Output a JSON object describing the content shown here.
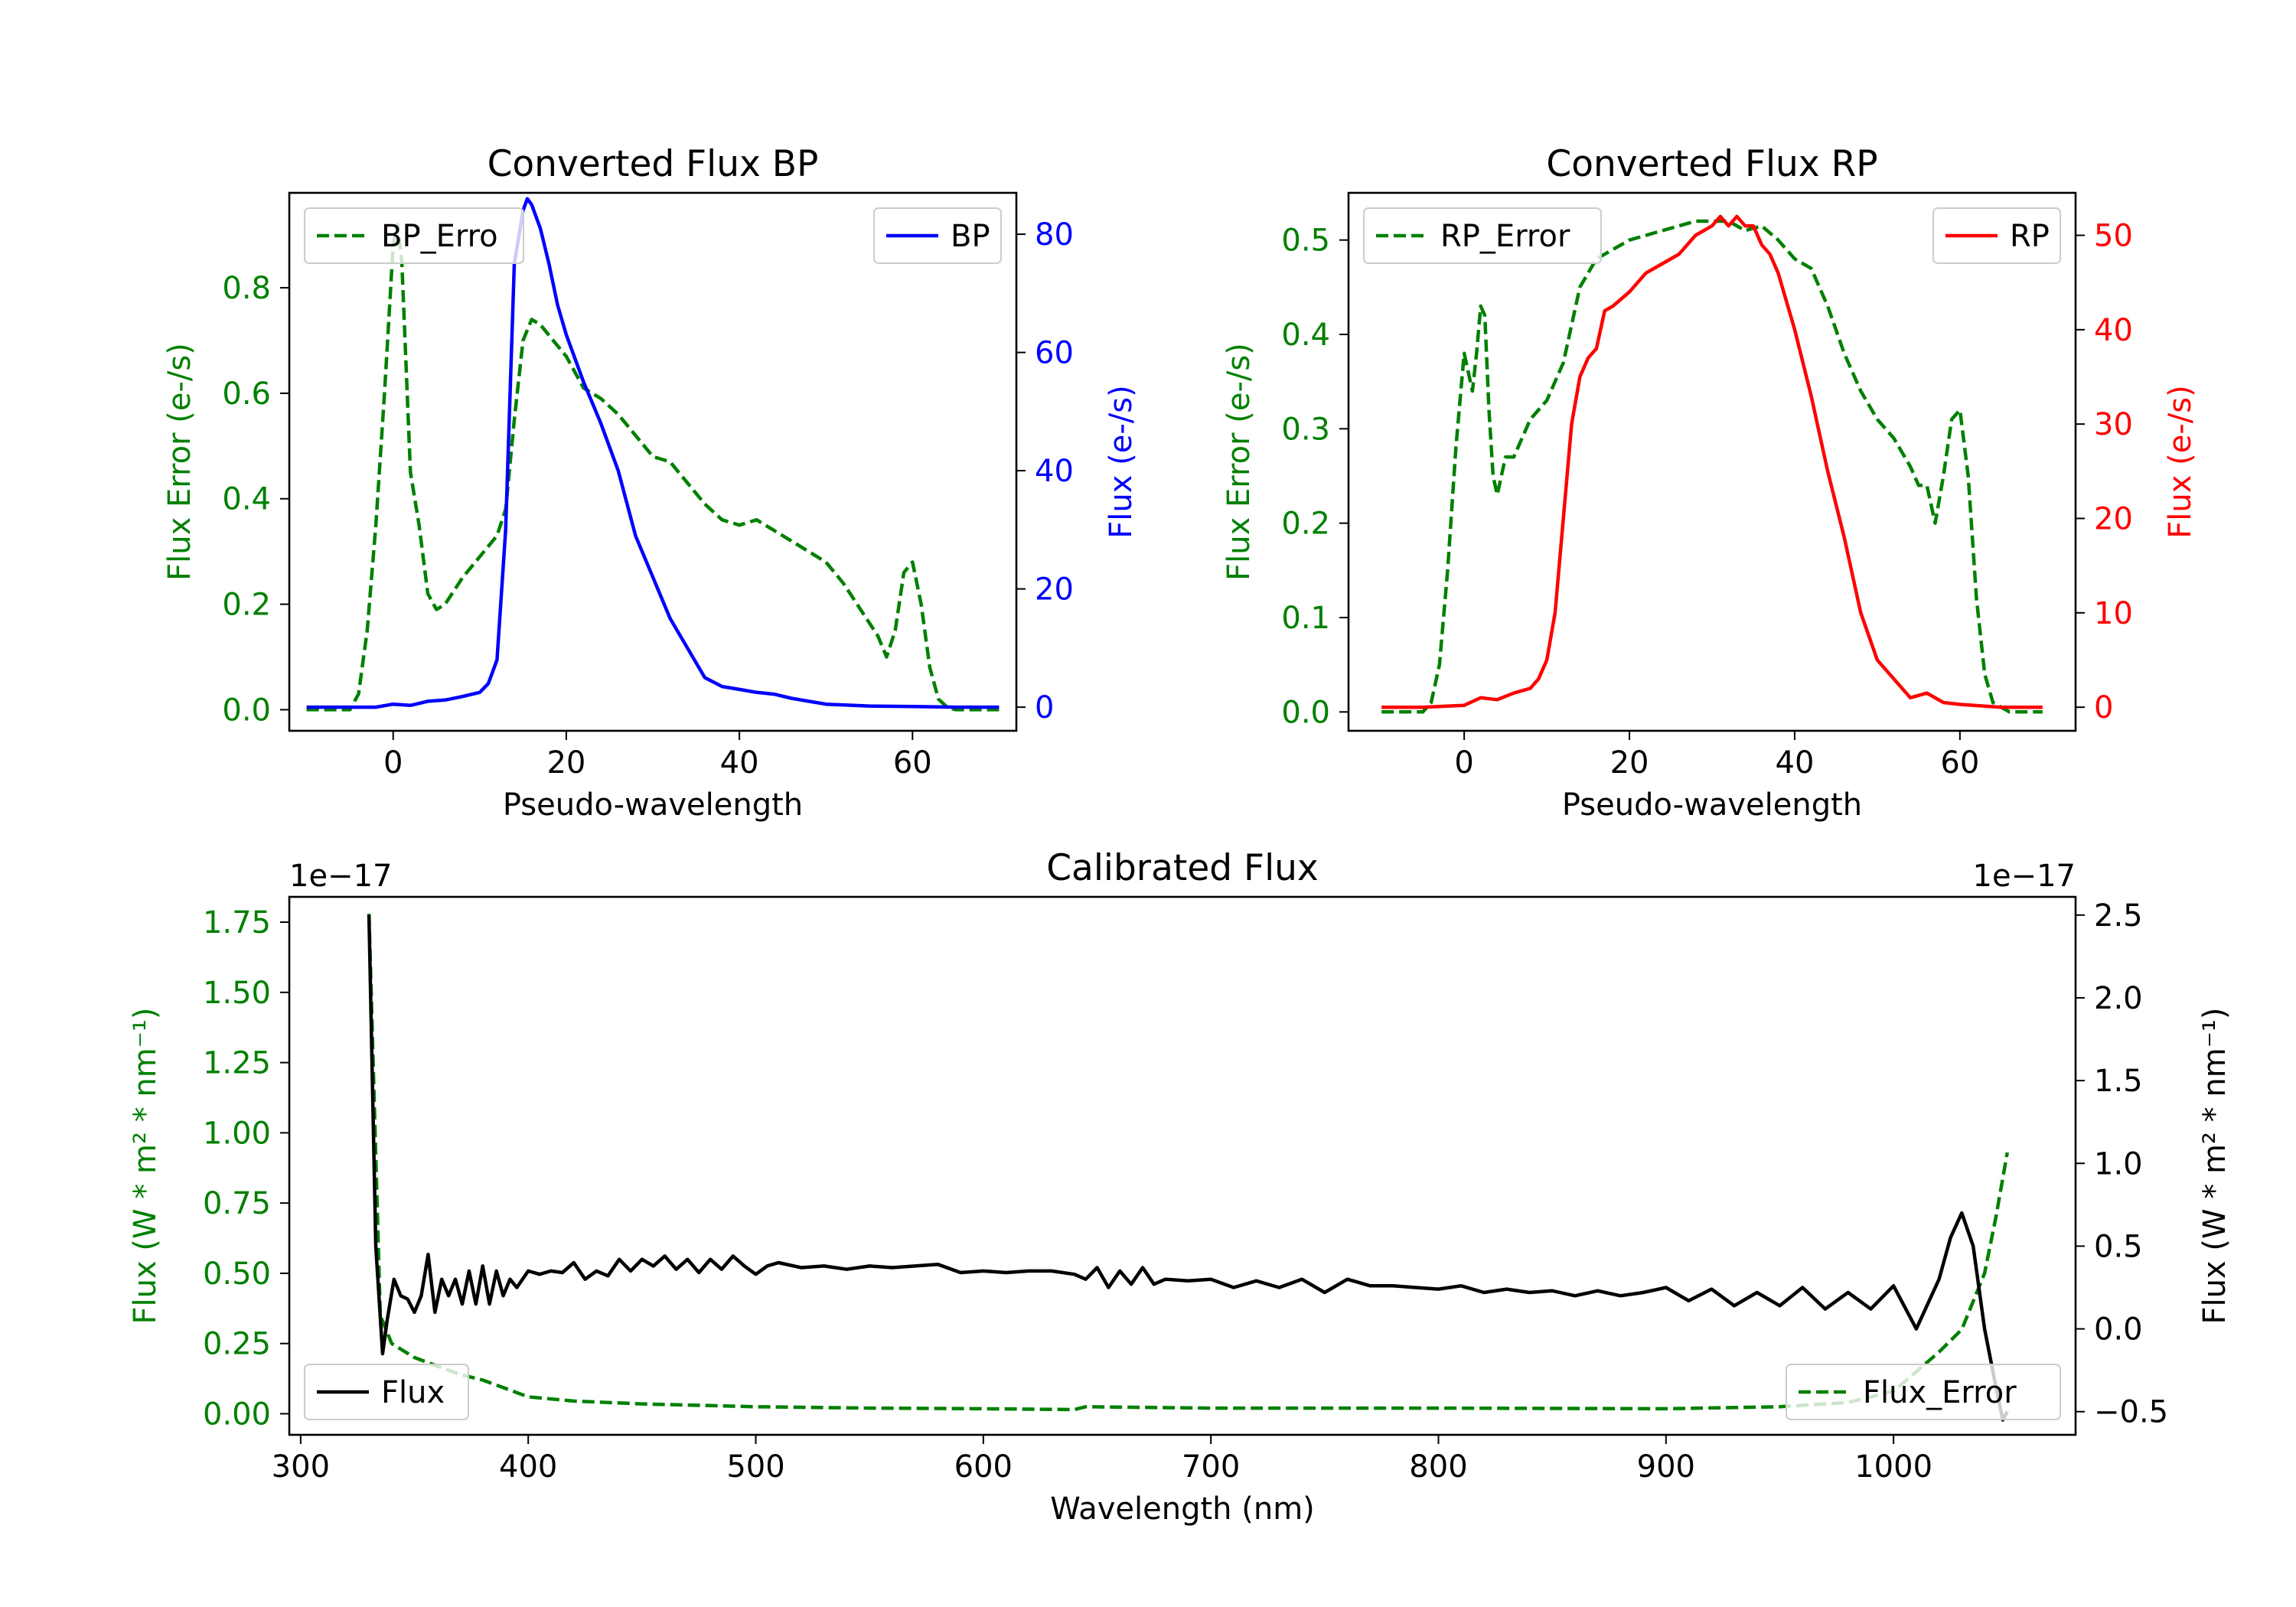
{
  "colors": {
    "green": "#008000",
    "blue": "#0000ff",
    "red": "#ff0000",
    "black": "#000000"
  },
  "chart_data": [
    {
      "id": "bp",
      "type": "line",
      "title": "Converted Flux BP",
      "xlabel": "Pseudo-wavelength",
      "xlim": [
        -12,
        72
      ],
      "xticks": [
        0,
        20,
        40,
        60
      ],
      "left_axis": {
        "label": "Flux Error (e-/s)",
        "color": "#008000",
        "lim": [
          -0.04,
          0.98
        ],
        "ticks": [
          0.0,
          0.2,
          0.4,
          0.6,
          0.8
        ],
        "tick_labels": [
          "0.0",
          "0.2",
          "0.4",
          "0.6",
          "0.8"
        ]
      },
      "right_axis": {
        "label": "Flux (e-/s)",
        "color": "#0000ff",
        "lim": [
          -4,
          87
        ],
        "ticks": [
          0,
          20,
          40,
          60,
          80
        ],
        "tick_labels": [
          "0",
          "20",
          "40",
          "60",
          "80"
        ]
      },
      "series": [
        {
          "name": "BP_Error",
          "axis": "left",
          "style": "dashed",
          "color": "#008000",
          "legend_label": "BP_Erro",
          "x": [
            -10,
            -5,
            -4,
            -3,
            -2,
            -1,
            0,
            0.5,
            1,
            2,
            3,
            4,
            5,
            6,
            8,
            10,
            12,
            13,
            14,
            15,
            16,
            17,
            18,
            20,
            22,
            24,
            26,
            28,
            30,
            32,
            34,
            36,
            38,
            40,
            42,
            44,
            46,
            48,
            50,
            52,
            54,
            56,
            57,
            58,
            59,
            60,
            61,
            62,
            63,
            64,
            65,
            66,
            68,
            70
          ],
          "y": [
            0,
            0,
            0.03,
            0.15,
            0.35,
            0.6,
            0.88,
            0.92,
            0.85,
            0.45,
            0.35,
            0.22,
            0.19,
            0.2,
            0.25,
            0.29,
            0.33,
            0.38,
            0.55,
            0.7,
            0.74,
            0.73,
            0.71,
            0.67,
            0.61,
            0.59,
            0.56,
            0.52,
            0.48,
            0.47,
            0.43,
            0.39,
            0.36,
            0.35,
            0.36,
            0.34,
            0.32,
            0.3,
            0.28,
            0.24,
            0.19,
            0.14,
            0.1,
            0.15,
            0.26,
            0.28,
            0.2,
            0.08,
            0.02,
            0.005,
            0,
            0,
            0,
            0
          ]
        },
        {
          "name": "BP",
          "axis": "right",
          "style": "solid",
          "color": "#0000ff",
          "legend_label": "BP",
          "x": [
            -10,
            -2,
            0,
            2,
            4,
            6,
            8,
            10,
            11,
            12,
            13,
            14,
            15,
            15.5,
            16,
            17,
            18,
            19,
            20,
            22,
            24,
            26,
            28,
            30,
            32,
            34,
            36,
            38,
            40,
            42,
            44,
            46,
            48,
            50,
            55,
            60,
            65,
            70
          ],
          "y": [
            0,
            0,
            0.5,
            0.3,
            1,
            1.2,
            1.8,
            2.5,
            4,
            8,
            30,
            75,
            84,
            86,
            85,
            81,
            75,
            68,
            63,
            55,
            48,
            40,
            29,
            22,
            15,
            10,
            5,
            3.5,
            3,
            2.5,
            2.2,
            1.5,
            1,
            0.5,
            0.2,
            0.1,
            0,
            0
          ]
        }
      ],
      "legends": [
        {
          "series": "BP_Error",
          "loc": "upper left"
        },
        {
          "series": "BP",
          "loc": "upper right"
        }
      ]
    },
    {
      "id": "rp",
      "type": "line",
      "title": "Converted Flux RP",
      "xlabel": "Pseudo-wavelength",
      "xlim": [
        -14,
        74
      ],
      "xticks": [
        0,
        20,
        40,
        60
      ],
      "left_axis": {
        "label": "Flux Error (e-/s)",
        "color": "#008000",
        "lim": [
          -0.02,
          0.55
        ],
        "ticks": [
          0.0,
          0.1,
          0.2,
          0.3,
          0.4,
          0.5
        ],
        "tick_labels": [
          "0.0",
          "0.1",
          "0.2",
          "0.3",
          "0.4",
          "0.5"
        ]
      },
      "right_axis": {
        "label": "Flux (e-/s)",
        "color": "#ff0000",
        "lim": [
          -2.5,
          54.5
        ],
        "ticks": [
          0,
          10,
          20,
          30,
          40,
          50
        ],
        "tick_labels": [
          "0",
          "10",
          "20",
          "30",
          "40",
          "50"
        ]
      },
      "series": [
        {
          "name": "RP_Error",
          "axis": "left",
          "style": "dashed",
          "color": "#008000",
          "legend_label": "RP_Error",
          "x": [
            -10,
            -5,
            -4,
            -3,
            -2,
            -1,
            0,
            0.5,
            1,
            1.5,
            2,
            2.5,
            3,
            3.5,
            4,
            5,
            6,
            8,
            10,
            12,
            14,
            16,
            18,
            20,
            22,
            24,
            26,
            28,
            30,
            32,
            34,
            36,
            38,
            40,
            42,
            44,
            46,
            48,
            50,
            52,
            54,
            55,
            56,
            57,
            58,
            59,
            60,
            61,
            62,
            63,
            64,
            66,
            68,
            70
          ],
          "y": [
            0,
            0,
            0.01,
            0.05,
            0.15,
            0.28,
            0.38,
            0.36,
            0.34,
            0.38,
            0.43,
            0.42,
            0.32,
            0.25,
            0.23,
            0.27,
            0.27,
            0.31,
            0.33,
            0.37,
            0.45,
            0.48,
            0.49,
            0.5,
            0.505,
            0.51,
            0.515,
            0.52,
            0.52,
            0.52,
            0.51,
            0.515,
            0.5,
            0.48,
            0.47,
            0.43,
            0.38,
            0.34,
            0.31,
            0.29,
            0.26,
            0.24,
            0.24,
            0.2,
            0.25,
            0.31,
            0.32,
            0.25,
            0.12,
            0.04,
            0.01,
            0,
            0,
            0
          ]
        },
        {
          "name": "RP",
          "axis": "right",
          "style": "solid",
          "color": "#ff0000",
          "legend_label": "RP",
          "x": [
            -10,
            -5,
            0,
            2,
            4,
            6,
            8,
            9,
            10,
            11,
            12,
            13,
            14,
            15,
            16,
            17,
            18,
            20,
            22,
            24,
            26,
            28,
            30,
            31,
            32,
            33,
            34,
            35,
            36,
            37,
            38,
            40,
            42,
            44,
            46,
            48,
            50,
            52,
            54,
            56,
            58,
            60,
            65,
            70
          ],
          "y": [
            0,
            0,
            0.2,
            1,
            0.8,
            1.5,
            2,
            3,
            5,
            10,
            20,
            30,
            35,
            37,
            38,
            42,
            42.5,
            44,
            46,
            47,
            48,
            50,
            51,
            52,
            51,
            52,
            51,
            51,
            49,
            48,
            46,
            40,
            33,
            25,
            18,
            10,
            5,
            3,
            1,
            1.5,
            0.5,
            0.3,
            0,
            0
          ]
        }
      ],
      "legends": [
        {
          "series": "RP_Error",
          "loc": "upper left"
        },
        {
          "series": "RP",
          "loc": "upper right"
        }
      ]
    },
    {
      "id": "cal",
      "type": "line",
      "title": "Calibrated Flux",
      "xlabel": "Wavelength (nm)",
      "xlim": [
        295,
        1080
      ],
      "xticks": [
        300,
        400,
        500,
        600,
        700,
        800,
        900,
        1000
      ],
      "left_axis": {
        "label": "Flux (W * m² * nm⁻¹)",
        "color": "#008000",
        "offset_label": "1e−17",
        "lim": [
          -0.075,
          1.84
        ],
        "ticks": [
          0,
          0.25,
          0.5,
          0.75,
          1.0,
          1.25,
          1.5,
          1.75
        ],
        "tick_labels": [
          "0.00",
          "0.25",
          "0.50",
          "0.75",
          "1.00",
          "1.25",
          "1.50",
          "1.75"
        ]
      },
      "right_axis": {
        "label": "Flux (W * m² * nm⁻¹)",
        "color": "#000000",
        "offset_label": "1e−17",
        "lim": [
          -0.64,
          2.61
        ],
        "ticks": [
          -0.5,
          0,
          0.5,
          1.0,
          1.5,
          2.0,
          2.5
        ],
        "tick_labels": [
          "−0.5",
          "0.0",
          "0.5",
          "1.0",
          "1.5",
          "2.0",
          "2.5"
        ]
      },
      "series": [
        {
          "name": "Flux_Error",
          "axis": "left",
          "style": "dashed",
          "color": "#008000",
          "legend_label": "Flux_Error",
          "x": [
            330,
            335,
            340,
            350,
            360,
            370,
            380,
            390,
            400,
            420,
            450,
            500,
            550,
            600,
            640,
            645,
            700,
            800,
            900,
            950,
            980,
            1000,
            1010,
            1020,
            1030,
            1040,
            1045,
            1050
          ],
          "y": [
            1.78,
            0.35,
            0.25,
            0.2,
            0.17,
            0.14,
            0.12,
            0.09,
            0.06,
            0.045,
            0.035,
            0.025,
            0.02,
            0.018,
            0.015,
            0.025,
            0.02,
            0.02,
            0.018,
            0.025,
            0.04,
            0.08,
            0.15,
            0.22,
            0.3,
            0.5,
            0.7,
            0.93
          ]
        },
        {
          "name": "Flux",
          "axis": "right",
          "style": "solid",
          "color": "#000000",
          "legend_label": "Flux",
          "x": [
            330,
            333,
            336,
            338,
            341,
            344,
            347,
            350,
            353,
            356,
            359,
            362,
            365,
            368,
            371,
            374,
            377,
            380,
            383,
            386,
            389,
            392,
            395,
            400,
            405,
            410,
            415,
            420,
            425,
            430,
            435,
            440,
            445,
            450,
            455,
            460,
            465,
            470,
            475,
            480,
            485,
            490,
            495,
            500,
            505,
            510,
            520,
            530,
            540,
            550,
            560,
            570,
            580,
            590,
            600,
            610,
            620,
            630,
            640,
            645,
            650,
            655,
            660,
            665,
            670,
            675,
            680,
            690,
            700,
            710,
            720,
            730,
            740,
            750,
            760,
            770,
            780,
            790,
            800,
            810,
            820,
            830,
            840,
            850,
            860,
            870,
            880,
            890,
            900,
            910,
            920,
            930,
            940,
            950,
            960,
            970,
            980,
            990,
            1000,
            1010,
            1020,
            1025,
            1030,
            1035,
            1040,
            1045,
            1048,
            1050
          ],
          "y": [
            2.5,
            0.5,
            -0.15,
            0.05,
            0.3,
            0.2,
            0.18,
            0.1,
            0.2,
            0.45,
            0.1,
            0.3,
            0.2,
            0.3,
            0.15,
            0.35,
            0.15,
            0.38,
            0.15,
            0.35,
            0.2,
            0.3,
            0.25,
            0.35,
            0.33,
            0.35,
            0.34,
            0.4,
            0.3,
            0.35,
            0.32,
            0.42,
            0.35,
            0.42,
            0.38,
            0.44,
            0.36,
            0.42,
            0.34,
            0.42,
            0.36,
            0.44,
            0.38,
            0.33,
            0.38,
            0.4,
            0.37,
            0.38,
            0.36,
            0.38,
            0.37,
            0.38,
            0.39,
            0.34,
            0.35,
            0.34,
            0.35,
            0.35,
            0.33,
            0.3,
            0.37,
            0.25,
            0.35,
            0.27,
            0.37,
            0.27,
            0.3,
            0.29,
            0.3,
            0.25,
            0.29,
            0.25,
            0.3,
            0.22,
            0.3,
            0.26,
            0.26,
            0.25,
            0.24,
            0.26,
            0.22,
            0.24,
            0.22,
            0.23,
            0.2,
            0.23,
            0.2,
            0.22,
            0.25,
            0.17,
            0.24,
            0.14,
            0.22,
            0.14,
            0.25,
            0.12,
            0.22,
            0.12,
            0.26,
            0.0,
            0.3,
            0.55,
            0.7,
            0.5,
            0.0,
            -0.35,
            -0.55,
            -0.5
          ]
        }
      ],
      "legends": [
        {
          "series": "Flux",
          "loc": "lower left"
        },
        {
          "series": "Flux_Error",
          "loc": "lower right"
        }
      ]
    }
  ]
}
